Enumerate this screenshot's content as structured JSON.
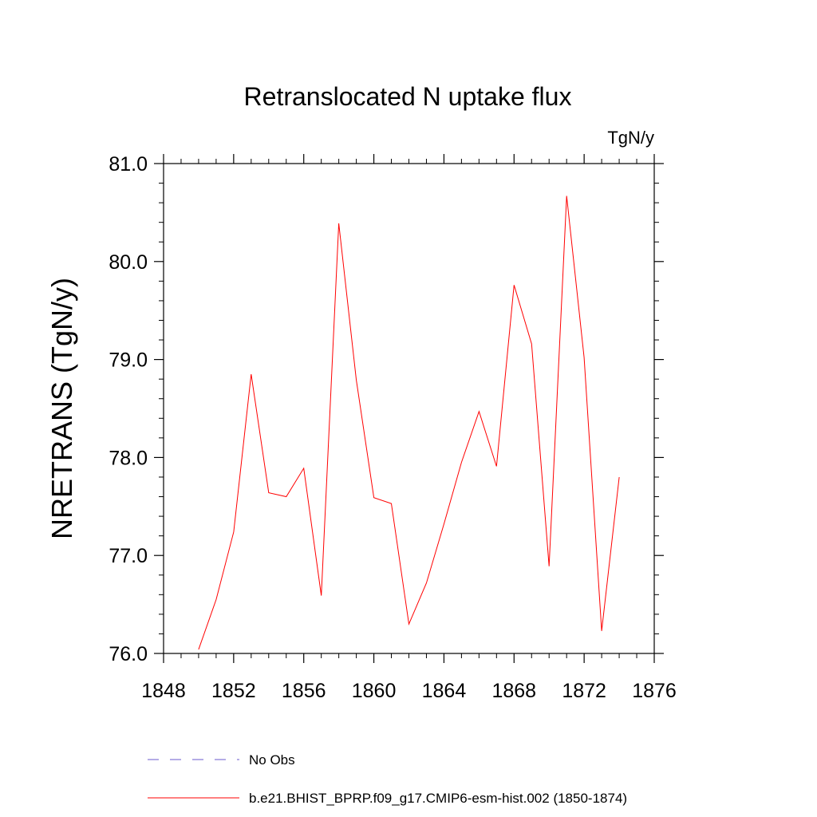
{
  "chart_data": {
    "type": "line",
    "title": "Retranslocated N uptake flux",
    "units": "TgN/y",
    "ylabel": "NRETRANS  (TgN/y)",
    "xlabel": "",
    "xlim": [
      1848,
      1876
    ],
    "ylim": [
      76.0,
      81.0
    ],
    "x_ticks": [
      1848,
      1852,
      1856,
      1860,
      1864,
      1868,
      1872,
      1876
    ],
    "y_ticks": [
      "76.0",
      "77.0",
      "78.0",
      "79.0",
      "80.0",
      "81.0"
    ],
    "grid": false,
    "legend_position": "bottom",
    "series": [
      {
        "name": "No Obs",
        "color": "#6a5acd",
        "style": "dashed",
        "x": [],
        "y": []
      },
      {
        "name": "b.e21.BHIST_BPRP.f09_g17.CMIP6-esm-hist.002 (1850-1874)",
        "color": "#ff0000",
        "style": "solid",
        "x": [
          1850,
          1851,
          1852,
          1853,
          1854,
          1855,
          1856,
          1857,
          1858,
          1859,
          1860,
          1861,
          1862,
          1863,
          1864,
          1865,
          1866,
          1867,
          1868,
          1869,
          1870,
          1871,
          1872,
          1873,
          1874
        ],
        "y": [
          76.04,
          76.55,
          77.24,
          78.85,
          77.64,
          77.6,
          77.89,
          76.59,
          80.39,
          78.79,
          77.59,
          77.53,
          76.3,
          76.72,
          77.32,
          77.95,
          78.47,
          77.91,
          79.76,
          79.16,
          76.89,
          80.67,
          79.02,
          76.23,
          77.8
        ]
      }
    ]
  }
}
